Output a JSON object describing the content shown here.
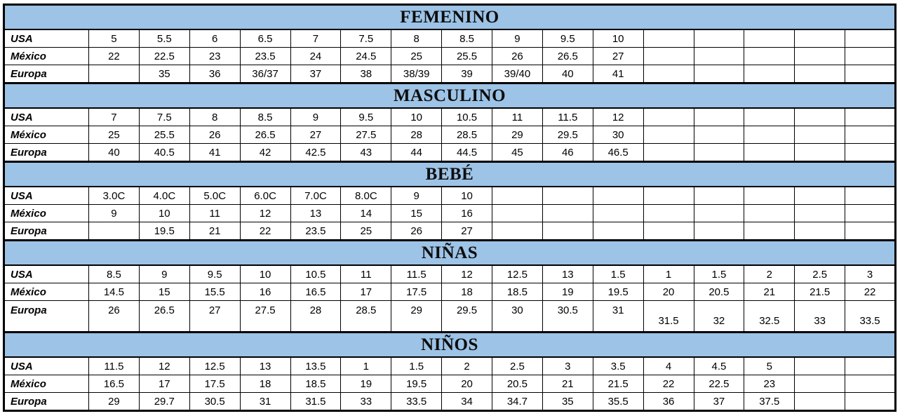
{
  "colors": {
    "header_bg": "#9DC3E6",
    "border": "#000000",
    "text": "#000000"
  },
  "row_labels": [
    "USA",
    "México",
    "Europa"
  ],
  "sections": [
    {
      "title": "FEMENINO",
      "usa": [
        "5",
        "5.5",
        "6",
        "6.5",
        "7",
        "7.5",
        "8",
        "8.5",
        "9",
        "9.5",
        "10",
        "",
        "",
        "",
        "",
        ""
      ],
      "mexico": [
        "22",
        "22.5",
        "23",
        "23.5",
        "24",
        "24.5",
        "25",
        "25.5",
        "26",
        "26.5",
        "27",
        "",
        "",
        "",
        "",
        ""
      ],
      "europa": [
        "",
        "35",
        "36",
        "36/37",
        "37",
        "38",
        "38/39",
        "39",
        "39/40",
        "40",
        "41",
        "",
        "",
        "",
        "",
        ""
      ]
    },
    {
      "title": "MASCULINO",
      "usa": [
        "7",
        "7.5",
        "8",
        "8.5",
        "9",
        "9.5",
        "10",
        "10.5",
        "11",
        "11.5",
        "12",
        "",
        "",
        "",
        "",
        ""
      ],
      "mexico": [
        "25",
        "25.5",
        "26",
        "26.5",
        "27",
        "27.5",
        "28",
        "28.5",
        "29",
        "29.5",
        "30",
        "",
        "",
        "",
        "",
        ""
      ],
      "europa": [
        "40",
        "40.5",
        "41",
        "42",
        "42.5",
        "43",
        "44",
        "44.5",
        "45",
        "46",
        "46.5",
        "",
        "",
        "",
        "",
        ""
      ]
    },
    {
      "title": "BEBÉ",
      "usa": [
        "3.0C",
        "4.0C",
        "5.0C",
        "6.0C",
        "7.0C",
        "8.0C",
        "9",
        "10",
        "",
        "",
        "",
        "",
        "",
        "",
        "",
        ""
      ],
      "mexico": [
        "9",
        "10",
        "11",
        "12",
        "13",
        "14",
        "15",
        "16",
        "",
        "",
        "",
        "",
        "",
        "",
        "",
        ""
      ],
      "europa": [
        "",
        "19.5",
        "21",
        "22",
        "23.5",
        "25",
        "26",
        "27",
        "",
        "",
        "",
        "",
        "",
        "",
        "",
        ""
      ]
    },
    {
      "title": "NIÑAS",
      "usa": [
        "8.5",
        "9",
        "9.5",
        "10",
        "10.5",
        "11",
        "11.5",
        "12",
        "12.5",
        "13",
        "1.5",
        "1",
        "1.5",
        "2",
        "2.5",
        "3"
      ],
      "mexico": [
        "14.5",
        "15",
        "15.5",
        "16",
        "16.5",
        "17",
        "17.5",
        "18",
        "18.5",
        "19",
        "19.5",
        "20",
        "20.5",
        "21",
        "21.5",
        "22"
      ],
      "europa": [
        "26",
        "26.5",
        "27",
        "27.5",
        "28",
        "28.5",
        "29",
        "29.5",
        "30",
        "30.5",
        "31",
        "31.5",
        "32",
        "32.5",
        "33",
        "33.5"
      ]
    },
    {
      "title": "NIÑOS",
      "usa": [
        "11.5",
        "12",
        "12.5",
        "13",
        "13.5",
        "1",
        "1.5",
        "2",
        "2.5",
        "3",
        "3.5",
        "4",
        "4.5",
        "5",
        "",
        ""
      ],
      "mexico": [
        "16.5",
        "17",
        "17.5",
        "18",
        "18.5",
        "19",
        "19.5",
        "20",
        "20.5",
        "21",
        "21.5",
        "22",
        "22.5",
        "23",
        "",
        ""
      ],
      "europa": [
        "29",
        "29.7",
        "30.5",
        "31",
        "31.5",
        "33",
        "33.5",
        "34",
        "34.7",
        "35",
        "35.5",
        "36",
        "37",
        "37.5",
        "",
        ""
      ]
    }
  ]
}
